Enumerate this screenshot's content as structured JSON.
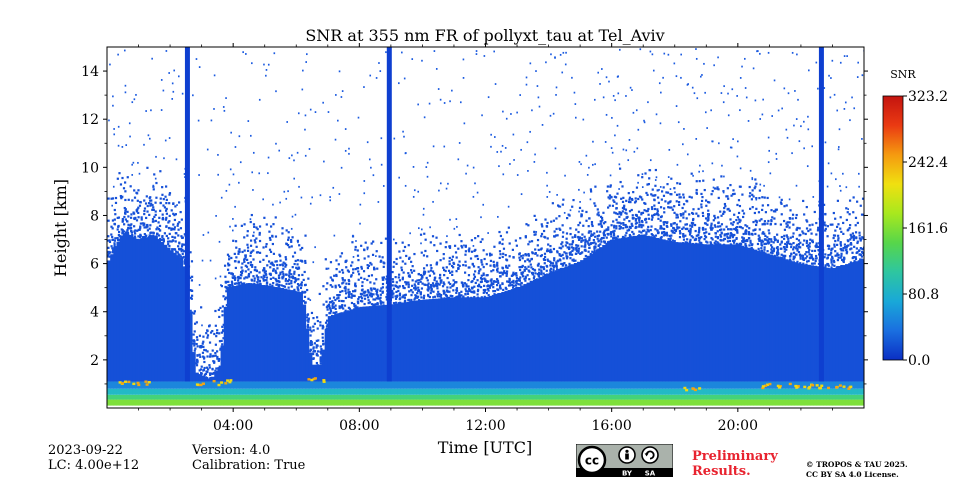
{
  "chart_data": {
    "type": "heatmap",
    "title": "SNR at 355 nm FR of pollyxt_tau at Tel_Aviv",
    "xlabel": "Time [UTC]",
    "ylabel": "Height [km]",
    "xlim_hours": [
      0,
      24
    ],
    "ylim_km": [
      0,
      15
    ],
    "x_ticks": [
      {
        "hour": 4,
        "label": "04:00"
      },
      {
        "hour": 8,
        "label": "08:00"
      },
      {
        "hour": 12,
        "label": "12:00"
      },
      {
        "hour": 16,
        "label": "16:00"
      },
      {
        "hour": 20,
        "label": "20:00"
      }
    ],
    "y_ticks": [
      {
        "km": 2,
        "label": "2"
      },
      {
        "km": 4,
        "label": "4"
      },
      {
        "km": 6,
        "label": "6"
      },
      {
        "km": 8,
        "label": "8"
      },
      {
        "km": 10,
        "label": "10"
      },
      {
        "km": 12,
        "label": "12"
      },
      {
        "km": 14,
        "label": "14"
      }
    ],
    "colorbar": {
      "label": "SNR",
      "min": 0.0,
      "max": 323.2,
      "ticks": [
        "0.0",
        "80.8",
        "161.6",
        "242.4",
        "323.2"
      ],
      "colormap": [
        "#0b2fc4",
        "#1a6fe0",
        "#19a8d8",
        "#2ec6a0",
        "#57d64a",
        "#a8e81e",
        "#f0e010",
        "#f59a10",
        "#ea3a12",
        "#c41410"
      ]
    },
    "signal_envelope_km": [
      {
        "hour": 0.0,
        "top": 6.0
      },
      {
        "hour": 0.5,
        "top": 7.3
      },
      {
        "hour": 1.0,
        "top": 7.0
      },
      {
        "hour": 1.5,
        "top": 7.2
      },
      {
        "hour": 2.0,
        "top": 6.6
      },
      {
        "hour": 2.4,
        "top": 6.2
      },
      {
        "hour": 2.6,
        "top": 4.8
      },
      {
        "hour": 2.8,
        "top": 1.5
      },
      {
        "hour": 3.3,
        "top": 1.2
      },
      {
        "hour": 3.6,
        "top": 1.8
      },
      {
        "hour": 3.8,
        "top": 5.0
      },
      {
        "hour": 4.5,
        "top": 5.2
      },
      {
        "hour": 5.5,
        "top": 5.0
      },
      {
        "hour": 6.2,
        "top": 4.8
      },
      {
        "hour": 6.5,
        "top": 1.8
      },
      {
        "hour": 6.8,
        "top": 1.8
      },
      {
        "hour": 7.0,
        "top": 3.8
      },
      {
        "hour": 8.0,
        "top": 4.2
      },
      {
        "hour": 9.0,
        "top": 4.3
      },
      {
        "hour": 10.0,
        "top": 4.5
      },
      {
        "hour": 11.0,
        "top": 4.6
      },
      {
        "hour": 12.0,
        "top": 4.6
      },
      {
        "hour": 13.0,
        "top": 5.0
      },
      {
        "hour": 14.0,
        "top": 5.6
      },
      {
        "hour": 15.0,
        "top": 6.1
      },
      {
        "hour": 16.0,
        "top": 7.0
      },
      {
        "hour": 17.0,
        "top": 7.2
      },
      {
        "hour": 18.0,
        "top": 6.9
      },
      {
        "hour": 19.0,
        "top": 6.8
      },
      {
        "hour": 20.0,
        "top": 6.8
      },
      {
        "hour": 21.0,
        "top": 6.4
      },
      {
        "hour": 22.0,
        "top": 6.0
      },
      {
        "hour": 23.0,
        "top": 5.8
      },
      {
        "hour": 24.0,
        "top": 6.2
      }
    ],
    "noise_top_km": 15.0,
    "near_surface_layer": {
      "bottom_km": 0.1,
      "top_km": 1.1
    },
    "high_snr_patches": [
      {
        "hour_start": 0.2,
        "hour_end": 1.3,
        "height_km": 1.0
      },
      {
        "hour_start": 2.7,
        "hour_end": 3.9,
        "height_km": 1.0
      },
      {
        "hour_start": 6.3,
        "hour_end": 6.9,
        "height_km": 1.1
      },
      {
        "hour_start": 18.2,
        "hour_end": 18.8,
        "height_km": 0.75
      },
      {
        "hour_start": 20.6,
        "hour_end": 23.6,
        "height_km": 0.85
      }
    ],
    "vertical_stripes_hours": [
      2.55,
      8.95,
      22.65
    ]
  },
  "footer": {
    "date": "2023-09-22",
    "lc": "LC: 4.00e+12",
    "version": "Version: 4.0",
    "calibration": "Calibration: True",
    "preliminary_line1": "Preliminary",
    "preliminary_line2": "Results.",
    "copyright_line1": "© TROPOS & TAU 2025.",
    "copyright_line2": "CC BY SA 4.0 License."
  },
  "license_badge": {
    "cc": "cc",
    "by": "BY",
    "sa": "SA"
  }
}
